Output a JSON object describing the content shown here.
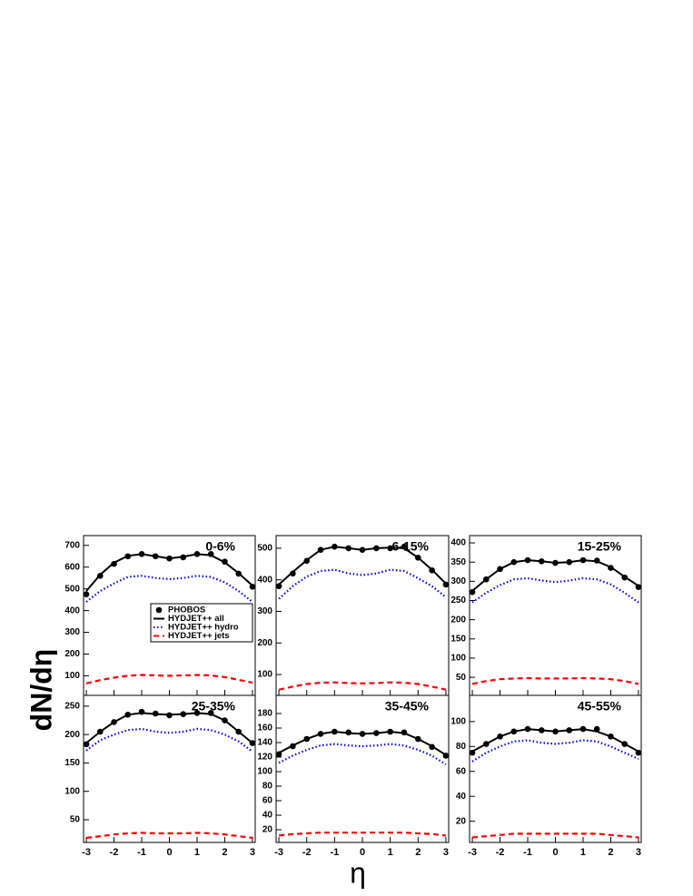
{
  "ylabel": "dN/dη",
  "xlabel": "η",
  "chart_data": [
    {
      "type": "line",
      "title": "0-6%",
      "legend": "center",
      "x": [
        -3,
        -2.5,
        -2,
        -1.5,
        -1,
        -0.5,
        0,
        0.5,
        1,
        1.5,
        2,
        2.5,
        3
      ],
      "xlim": [
        -3.1,
        3.1
      ],
      "xticks": [
        -3,
        -2,
        -1,
        0,
        1,
        2,
        3
      ],
      "ylim": [
        10,
        745
      ],
      "yticks": [
        100,
        200,
        300,
        400,
        500,
        600,
        700
      ],
      "series": [
        {
          "name": "PHOBOS",
          "color": "#000000",
          "style": "points",
          "values": [
            475,
            560,
            615,
            650,
            660,
            650,
            640,
            645,
            660,
            660,
            625,
            570,
            510
          ]
        },
        {
          "name": "HYDJET++ all",
          "color": "#000000",
          "style": "solid",
          "values": [
            490,
            565,
            620,
            652,
            660,
            650,
            640,
            648,
            660,
            655,
            622,
            572,
            515
          ]
        },
        {
          "name": "HYDJET++ hydro",
          "color": "#0000ff",
          "style": "dotted",
          "values": [
            440,
            490,
            525,
            555,
            560,
            550,
            545,
            550,
            560,
            555,
            530,
            490,
            440
          ]
        },
        {
          "name": "HYDJET++ jets",
          "color": "#ff0000",
          "style": "dashed",
          "values": [
            65,
            80,
            92,
            100,
            104,
            102,
            100,
            102,
            104,
            102,
            94,
            82,
            68
          ]
        }
      ]
    },
    {
      "type": "line",
      "title": "6-15%",
      "legend": "none",
      "x": [
        -3,
        -2.5,
        -2,
        -1.5,
        -1,
        -0.5,
        0,
        0.5,
        1,
        1.5,
        2,
        2.5,
        3
      ],
      "xlim": [
        -3.1,
        3.1
      ],
      "xticks": [
        -3,
        -2,
        -1,
        0,
        1,
        2,
        3
      ],
      "ylim": [
        34,
        540
      ],
      "yticks": [
        100,
        200,
        300,
        400,
        500
      ],
      "series": [
        {
          "name": "PHOBOS",
          "color": "#000000",
          "style": "points",
          "values": [
            380,
            420,
            460,
            495,
            505,
            500,
            495,
            500,
            500,
            505,
            470,
            430,
            385
          ]
        },
        {
          "name": "HYDJET++ all",
          "color": "#000000",
          "style": "solid",
          "values": [
            385,
            425,
            462,
            495,
            505,
            500,
            495,
            500,
            502,
            500,
            470,
            432,
            388
          ]
        },
        {
          "name": "HYDJET++ hydro",
          "color": "#0000ff",
          "style": "dotted",
          "values": [
            340,
            380,
            410,
            428,
            432,
            420,
            415,
            420,
            432,
            428,
            405,
            380,
            345
          ]
        },
        {
          "name": "HYDJET++ jets",
          "color": "#ff0000",
          "style": "dashed",
          "values": [
            52,
            62,
            70,
            74,
            75,
            73,
            72,
            73,
            75,
            74,
            70,
            62,
            52
          ]
        }
      ]
    },
    {
      "type": "line",
      "title": "15-25%",
      "legend": "none",
      "x": [
        -3,
        -2.5,
        -2,
        -1.5,
        -1,
        -0.5,
        0,
        0.5,
        1,
        1.5,
        2,
        2.5,
        3
      ],
      "xlim": [
        -3.1,
        3.1
      ],
      "xticks": [
        -3,
        -2,
        -1,
        0,
        1,
        2,
        3
      ],
      "ylim": [
        3,
        419
      ],
      "yticks": [
        50,
        100,
        150,
        200,
        250,
        300,
        350,
        400
      ],
      "series": [
        {
          "name": "PHOBOS",
          "color": "#000000",
          "style": "points",
          "values": [
            272,
            305,
            332,
            350,
            355,
            352,
            348,
            350,
            355,
            354,
            335,
            310,
            285
          ]
        },
        {
          "name": "HYDJET++ all",
          "color": "#000000",
          "style": "solid",
          "values": [
            275,
            305,
            332,
            350,
            355,
            352,
            348,
            350,
            355,
            352,
            337,
            312,
            288
          ]
        },
        {
          "name": "HYDJET++ hydro",
          "color": "#0000ff",
          "style": "dotted",
          "values": [
            245,
            270,
            290,
            305,
            308,
            302,
            298,
            302,
            308,
            305,
            292,
            270,
            245
          ]
        },
        {
          "name": "HYDJET++ jets",
          "color": "#ff0000",
          "style": "dashed",
          "values": [
            33,
            40,
            45,
            47,
            48,
            47,
            47,
            47,
            48,
            47,
            45,
            40,
            33
          ]
        }
      ]
    },
    {
      "type": "line",
      "title": "25-35%",
      "legend": "none",
      "x": [
        -3,
        -2.5,
        -2,
        -1.5,
        -1,
        -0.5,
        0,
        0.5,
        1,
        1.5,
        2,
        2.5,
        3
      ],
      "xlim": [
        -3.1,
        3.1
      ],
      "xticks": [
        -3,
        -2,
        -1,
        0,
        1,
        2,
        3
      ],
      "ylim": [
        10,
        269
      ],
      "yticks": [
        50,
        100,
        150,
        200,
        250
      ],
      "series": [
        {
          "name": "PHOBOS",
          "color": "#000000",
          "style": "points",
          "values": [
            183,
            205,
            222,
            235,
            240,
            237,
            234,
            236,
            238,
            238,
            225,
            205,
            185
          ]
        },
        {
          "name": "HYDJET++ all",
          "color": "#000000",
          "style": "solid",
          "values": [
            185,
            205,
            222,
            235,
            238,
            236,
            235,
            236,
            238,
            236,
            225,
            205,
            185
          ]
        },
        {
          "name": "HYDJET++ hydro",
          "color": "#0000ff",
          "style": "dotted",
          "values": [
            172,
            190,
            200,
            208,
            210,
            205,
            203,
            205,
            210,
            208,
            200,
            188,
            170
          ]
        },
        {
          "name": "HYDJET++ jets",
          "color": "#ff0000",
          "style": "dashed",
          "values": [
            18,
            21,
            24,
            26,
            27,
            26,
            26,
            26,
            27,
            26,
            24,
            21,
            18
          ]
        }
      ]
    },
    {
      "type": "line",
      "title": "35-45%",
      "legend": "none",
      "x": [
        -3,
        -2.5,
        -2,
        -1.5,
        -1,
        -0.5,
        0,
        0.5,
        1,
        1.5,
        2,
        2.5,
        3
      ],
      "xlim": [
        -3.1,
        3.1
      ],
      "xticks": [
        -3,
        -2,
        -1,
        0,
        1,
        2,
        3
      ],
      "ylim": [
        2.5,
        205
      ],
      "yticks": [
        20,
        40,
        60,
        80,
        100,
        120,
        140,
        160,
        180
      ],
      "series": [
        {
          "name": "PHOBOS",
          "color": "#000000",
          "style": "points",
          "values": [
            124,
            135,
            145,
            152,
            155,
            154,
            152,
            153,
            155,
            154,
            145,
            134,
            122
          ]
        },
        {
          "name": "HYDJET++ all",
          "color": "#000000",
          "style": "solid",
          "values": [
            126,
            136,
            145,
            152,
            155,
            153,
            152,
            153,
            155,
            153,
            145,
            135,
            123
          ]
        },
        {
          "name": "HYDJET++ hydro",
          "color": "#0000ff",
          "style": "dotted",
          "values": [
            112,
            122,
            130,
            136,
            138,
            136,
            135,
            136,
            138,
            136,
            130,
            122,
            110
          ]
        },
        {
          "name": "HYDJET++ jets",
          "color": "#ff0000",
          "style": "dashed",
          "values": [
            12,
            14,
            15,
            16,
            16,
            16,
            16,
            16,
            16,
            16,
            15,
            14,
            12
          ]
        }
      ]
    },
    {
      "type": "line",
      "title": "45-55%",
      "legend": "none",
      "x": [
        -3,
        -2.5,
        -2,
        -1.5,
        -1,
        -0.5,
        0,
        0.5,
        1,
        1.5,
        2,
        2.5,
        3
      ],
      "xlim": [
        -3.1,
        3.1
      ],
      "xticks": [
        -3,
        -2,
        -1,
        0,
        1,
        2,
        3
      ],
      "ylim": [
        3,
        121
      ],
      "yticks": [
        20,
        40,
        60,
        80,
        100
      ],
      "series": [
        {
          "name": "PHOBOS",
          "color": "#000000",
          "style": "points",
          "values": [
            75,
            82,
            88,
            92,
            94,
            93,
            92,
            93,
            94,
            94,
            88,
            82,
            75
          ]
        },
        {
          "name": "HYDJET++ all",
          "color": "#000000",
          "style": "solid",
          "values": [
            76,
            82,
            88,
            92,
            94,
            93,
            92,
            93,
            94,
            92,
            88,
            82,
            76
          ]
        },
        {
          "name": "HYDJET++ hydro",
          "color": "#0000ff",
          "style": "dotted",
          "values": [
            68,
            75,
            80,
            84,
            85,
            83,
            82,
            83,
            85,
            84,
            80,
            75,
            70
          ]
        },
        {
          "name": "HYDJET++ jets",
          "color": "#ff0000",
          "style": "dashed",
          "values": [
            7,
            8,
            9,
            10,
            10,
            10,
            10,
            10,
            10,
            10,
            9,
            8,
            7
          ]
        }
      ]
    }
  ]
}
